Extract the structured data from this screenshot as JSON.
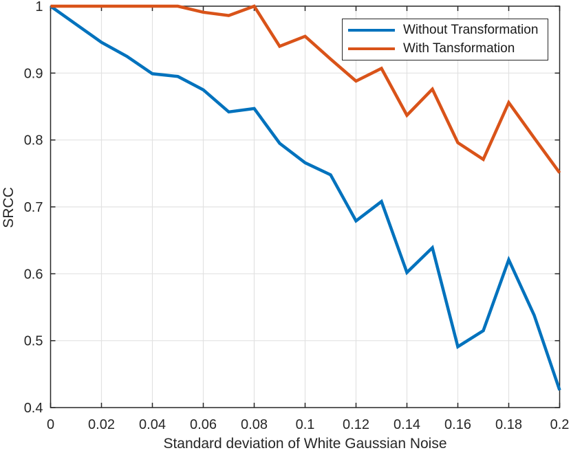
{
  "figure": {
    "background": "#ffffff",
    "axis_color": "#262626",
    "grid_color": "#e2e2e2",
    "tick_label_color": "#262626"
  },
  "chart_data": {
    "type": "line",
    "title": "",
    "xlabel": "Standard deviation of White Gaussian Noise",
    "ylabel": "SRCC",
    "xlim": [
      0,
      0.2
    ],
    "ylim": [
      0.4,
      1
    ],
    "grid": true,
    "legend_position": "top-right",
    "x_ticks": {
      "values": [
        0,
        0.02,
        0.04,
        0.06,
        0.08,
        0.1,
        0.12,
        0.14,
        0.16,
        0.18,
        0.2
      ],
      "labels": [
        "0",
        "0.02",
        "0.04",
        "0.06",
        "0.08",
        "0.1",
        "0.12",
        "0.14",
        "0.16",
        "0.18",
        "0.2"
      ]
    },
    "y_ticks": {
      "values": [
        0.4,
        0.5,
        0.6,
        0.7,
        0.8,
        0.9,
        1
      ],
      "labels": [
        "0.4",
        "0.5",
        "0.6",
        "0.7",
        "0.8",
        "0.9",
        "1"
      ]
    },
    "x": [
      0,
      0.01,
      0.02,
      0.03,
      0.04,
      0.05,
      0.06,
      0.07,
      0.08,
      0.09,
      0.1,
      0.11,
      0.12,
      0.13,
      0.14,
      0.15,
      0.16,
      0.17,
      0.18,
      0.19,
      0.2
    ],
    "series": [
      {
        "name": "Without Transformation",
        "color": "#0072BD",
        "line_width": 4.5,
        "values": [
          1.0,
          0.973,
          0.946,
          0.925,
          0.899,
          0.895,
          0.875,
          0.842,
          0.847,
          0.795,
          0.766,
          0.748,
          0.679,
          0.708,
          0.602,
          0.639,
          0.491,
          0.515,
          0.621,
          0.538,
          0.426
        ]
      },
      {
        "name": "With Tansformation",
        "color": "#D95319",
        "line_width": 4.5,
        "values": [
          1.0,
          1.0,
          1.0,
          1.0,
          1.0,
          1.0,
          0.991,
          0.986,
          1.0,
          0.94,
          0.955,
          0.921,
          0.888,
          0.907,
          0.837,
          0.876,
          0.796,
          0.771,
          0.856,
          0.803,
          0.751
        ]
      }
    ]
  }
}
